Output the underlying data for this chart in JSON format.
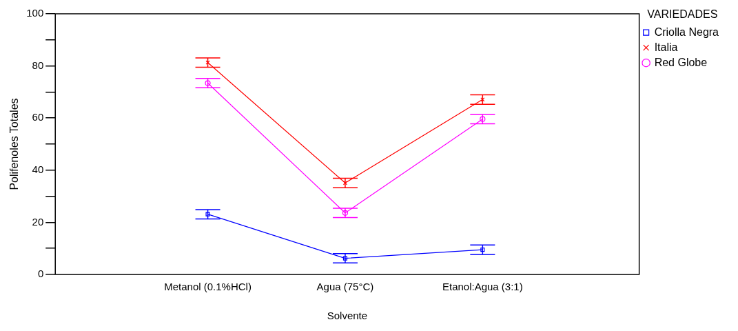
{
  "chart_data": {
    "type": "line",
    "xlabel": "Solvente",
    "ylabel": "Polifenoles Totales",
    "legend_title": "VARIEDADES",
    "categories": [
      "Metanol (0.1%HCl)",
      "Agua (75°C)",
      "Etanol:Agua (3:1)"
    ],
    "series": [
      {
        "name": "Criolla Negra",
        "color": "#0000ff",
        "marker": "square",
        "values": [
          23.1,
          6.2,
          9.5
        ],
        "errors": [
          1.8,
          1.8,
          1.8
        ]
      },
      {
        "name": "Italia",
        "color": "#ff0000",
        "marker": "cross",
        "values": [
          81.3,
          35.1,
          67.1
        ],
        "errors": [
          1.8,
          1.8,
          1.8
        ]
      },
      {
        "name": "Red Globe",
        "color": "#ff00ff",
        "marker": "circle",
        "values": [
          73.4,
          23.6,
          59.6
        ],
        "errors": [
          1.8,
          1.8,
          1.8
        ]
      }
    ],
    "ylim": [
      0,
      100
    ],
    "yticks": [
      0,
      {
        "value": 10,
        "label": null
      },
      20,
      {
        "value": 30,
        "label": null
      },
      40,
      {
        "value": 50,
        "label": null
      },
      60,
      {
        "value": 70,
        "label": null
      },
      80,
      {
        "value": 90,
        "label": null
      },
      100
    ],
    "grid": false,
    "legend": "top right",
    "line_style": "solid"
  }
}
